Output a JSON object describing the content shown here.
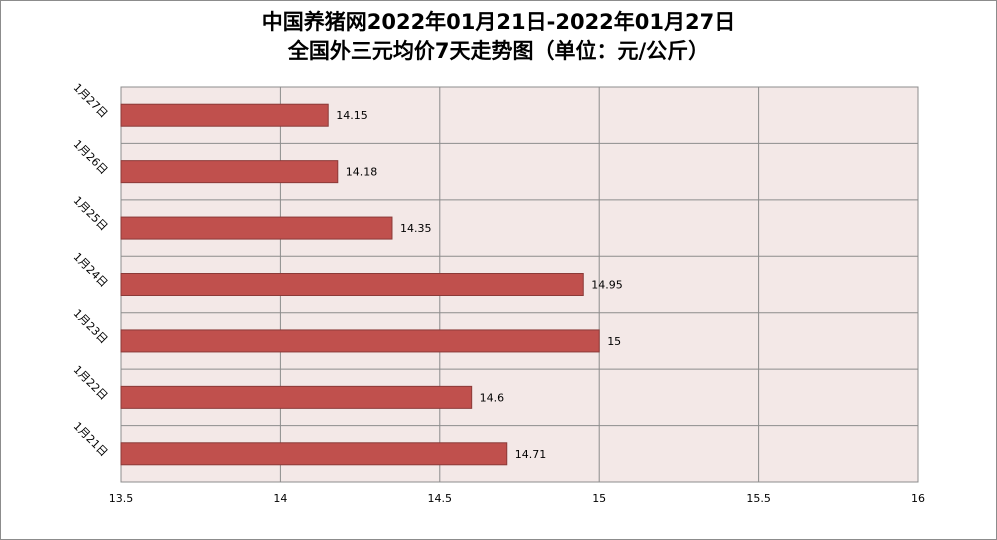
{
  "chart_data": {
    "type": "bar",
    "orientation": "horizontal",
    "title": "中国养猪网2022年01月21日-2022年01月27日",
    "subtitle": "全国外三元均价7天走势图（单位：元/公斤）",
    "categories": [
      "1月21日",
      "1月22日",
      "1月23日",
      "1月24日",
      "1月25日",
      "1月26日",
      "1月27日"
    ],
    "values": [
      14.71,
      14.6,
      15,
      14.95,
      14.35,
      14.18,
      14.15
    ],
    "data_labels": [
      "14.71",
      "14.6",
      "15",
      "14.95",
      "14.35",
      "14.18",
      "14.15"
    ],
    "xlim": [
      13.5,
      16
    ],
    "xticks": [
      13.5,
      14,
      14.5,
      15,
      15.5,
      16
    ],
    "xtick_labels": [
      "13.5",
      "14",
      "14.5",
      "15",
      "15.5",
      "16"
    ],
    "grid": true,
    "legend": "none",
    "colors": {
      "bar": "#c0504d",
      "bar_border": "#8b3a38",
      "plot_bg": "#f3e8e7",
      "grid": "#8c8c8c"
    }
  }
}
